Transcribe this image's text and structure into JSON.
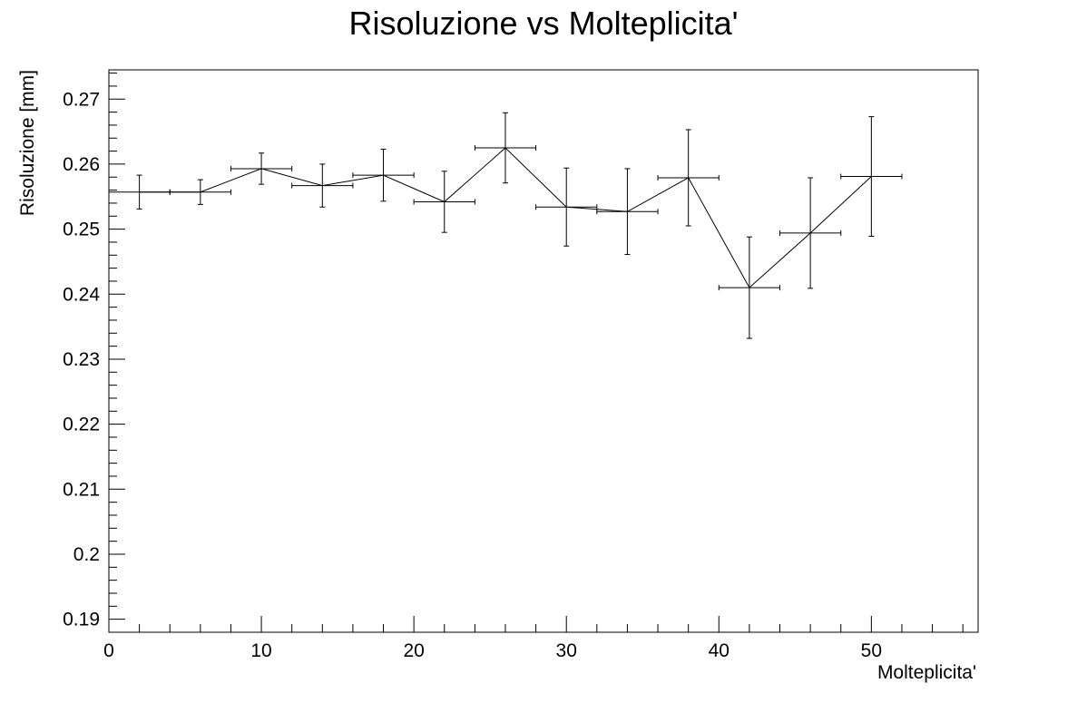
{
  "chart_data": {
    "type": "scatter",
    "title": "Risoluzione vs Molteplicita'",
    "xlabel": "Molteplicita'",
    "ylabel": "Risoluzione [mm]",
    "xlim": [
      0,
      57
    ],
    "ylim": [
      0.188,
      0.2745
    ],
    "x_ticks": [
      "0",
      "10",
      "20",
      "30",
      "40",
      "50"
    ],
    "y_ticks": [
      "0.19",
      "0.2",
      "0.21",
      "0.22",
      "0.23",
      "0.24",
      "0.25",
      "0.26",
      "0.27"
    ],
    "grid": false,
    "legend": "none",
    "connected_line": true,
    "series": [
      {
        "x": [
          2,
          6,
          10,
          14,
          18,
          22,
          26,
          30,
          34,
          38,
          42,
          46,
          50
        ],
        "y": [
          0.2557,
          0.2557,
          0.2593,
          0.2567,
          0.2583,
          0.2542,
          0.2625,
          0.2534,
          0.2527,
          0.2579,
          0.241,
          0.2494,
          0.2581
        ],
        "xerr": [
          2,
          2,
          2,
          2,
          2,
          2,
          2,
          2,
          2,
          2,
          2,
          2,
          2
        ],
        "yerr": [
          0.0026,
          0.0019,
          0.0024,
          0.0033,
          0.004,
          0.0047,
          0.0054,
          0.006,
          0.0066,
          0.0074,
          0.0078,
          0.0085,
          0.0092
        ]
      }
    ]
  }
}
